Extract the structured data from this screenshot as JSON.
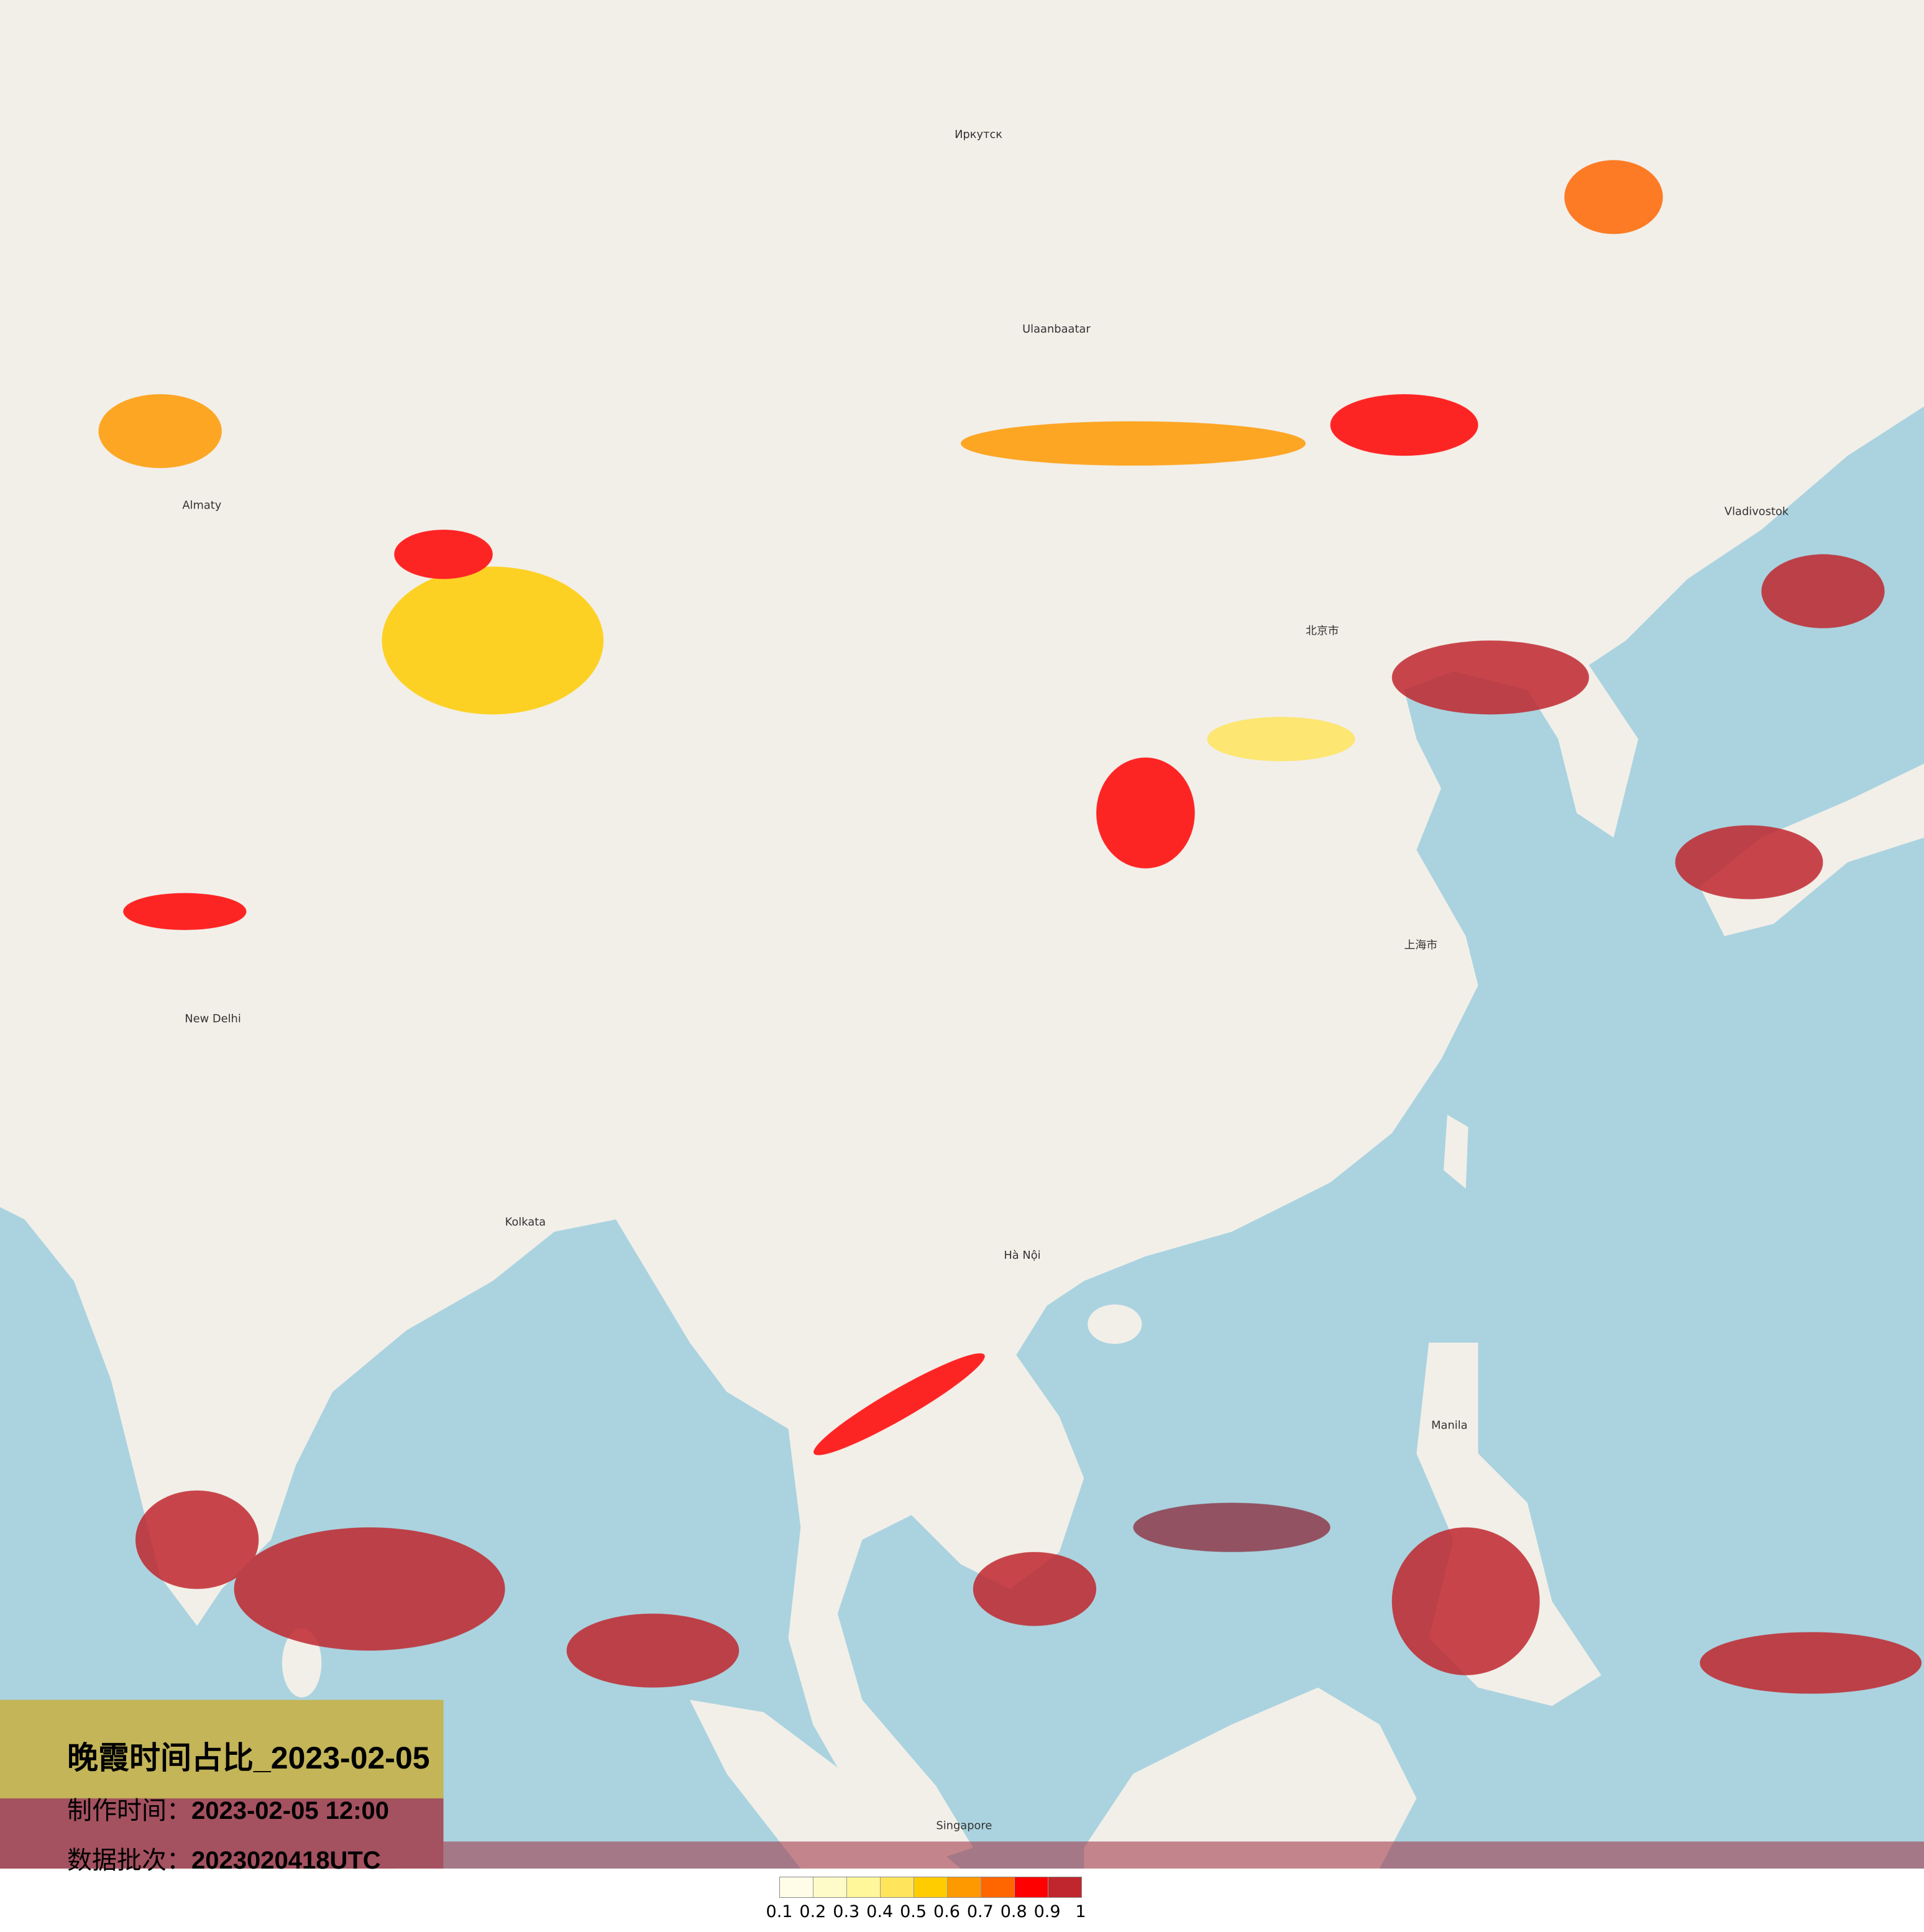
{
  "title": "晚霞时间占比_2023-02-05",
  "production_time": {
    "label": "制作时间：",
    "value": "2023-02-05 12:00"
  },
  "data_batch": {
    "label": "数据批次：",
    "value": "2023020418UTC"
  },
  "colors": {
    "land": "#f2efe9",
    "sea": "#aad3df",
    "border": "#c8a0c8"
  },
  "legend": {
    "ticks": [
      "0.1",
      "0.2",
      "0.3",
      "0.4",
      "0.5",
      "0.6",
      "0.7",
      "0.8",
      "0.9",
      "1"
    ],
    "colors": [
      "#fffde8",
      "#fffbc8",
      "#fff799",
      "#ffe45c",
      "#ffcc00",
      "#ff9900",
      "#ff6600",
      "#ff0000",
      "#c0262d"
    ]
  },
  "cities": [
    {
      "name": "北京市"
    },
    {
      "name": "上海市"
    },
    {
      "name": "Ulaanbaatar"
    },
    {
      "name": "New Delhi"
    },
    {
      "name": "Kolkata"
    },
    {
      "name": "Hà Nội"
    },
    {
      "name": "Singapore"
    },
    {
      "name": "Manila"
    },
    {
      "name": "Vladivostok"
    },
    {
      "name": "Almaty"
    },
    {
      "name": "Иркутск"
    }
  ]
}
